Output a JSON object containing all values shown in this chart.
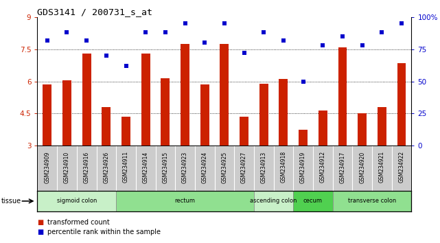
{
  "title": "GDS3141 / 200731_s_at",
  "samples": [
    "GSM234909",
    "GSM234910",
    "GSM234916",
    "GSM234926",
    "GSM234911",
    "GSM234914",
    "GSM234915",
    "GSM234923",
    "GSM234924",
    "GSM234925",
    "GSM234927",
    "GSM234913",
    "GSM234918",
    "GSM234919",
    "GSM234912",
    "GSM234917",
    "GSM234920",
    "GSM234921",
    "GSM234922"
  ],
  "bar_values": [
    5.85,
    6.05,
    7.3,
    4.8,
    4.35,
    7.3,
    6.15,
    7.75,
    5.85,
    7.75,
    4.35,
    5.9,
    6.1,
    3.75,
    4.65,
    7.6,
    4.5,
    4.8,
    6.85
  ],
  "dot_values": [
    82,
    88,
    82,
    70,
    62,
    88,
    88,
    95,
    80,
    95,
    72,
    88,
    82,
    50,
    78,
    85,
    78,
    88,
    95
  ],
  "bar_color": "#cc2200",
  "dot_color": "#0000cc",
  "ylim_left": [
    3,
    9
  ],
  "ylim_right": [
    0,
    100
  ],
  "yticks_left": [
    3,
    4.5,
    6,
    7.5,
    9
  ],
  "yticks_right": [
    0,
    25,
    50,
    75,
    100
  ],
  "ytick_labels_right": [
    "0",
    "25",
    "50",
    "75",
    "100%"
  ],
  "gridlines": [
    4.5,
    6.0,
    7.5
  ],
  "tissue_groups": [
    {
      "label": "sigmoid colon",
      "start": 0,
      "end": 4,
      "color": "#c8f0c8"
    },
    {
      "label": "rectum",
      "start": 4,
      "end": 11,
      "color": "#90e090"
    },
    {
      "label": "ascending colon",
      "start": 11,
      "end": 13,
      "color": "#c8f0c8"
    },
    {
      "label": "cecum",
      "start": 13,
      "end": 15,
      "color": "#50d050"
    },
    {
      "label": "transverse colon",
      "start": 15,
      "end": 19,
      "color": "#90e090"
    }
  ],
  "tissue_label": "tissue",
  "legend_bar_label": "transformed count",
  "legend_dot_label": "percentile rank within the sample",
  "bar_width": 0.45,
  "background_color": "#ffffff",
  "plot_bg_color": "#ffffff",
  "label_area_color": "#cccccc"
}
